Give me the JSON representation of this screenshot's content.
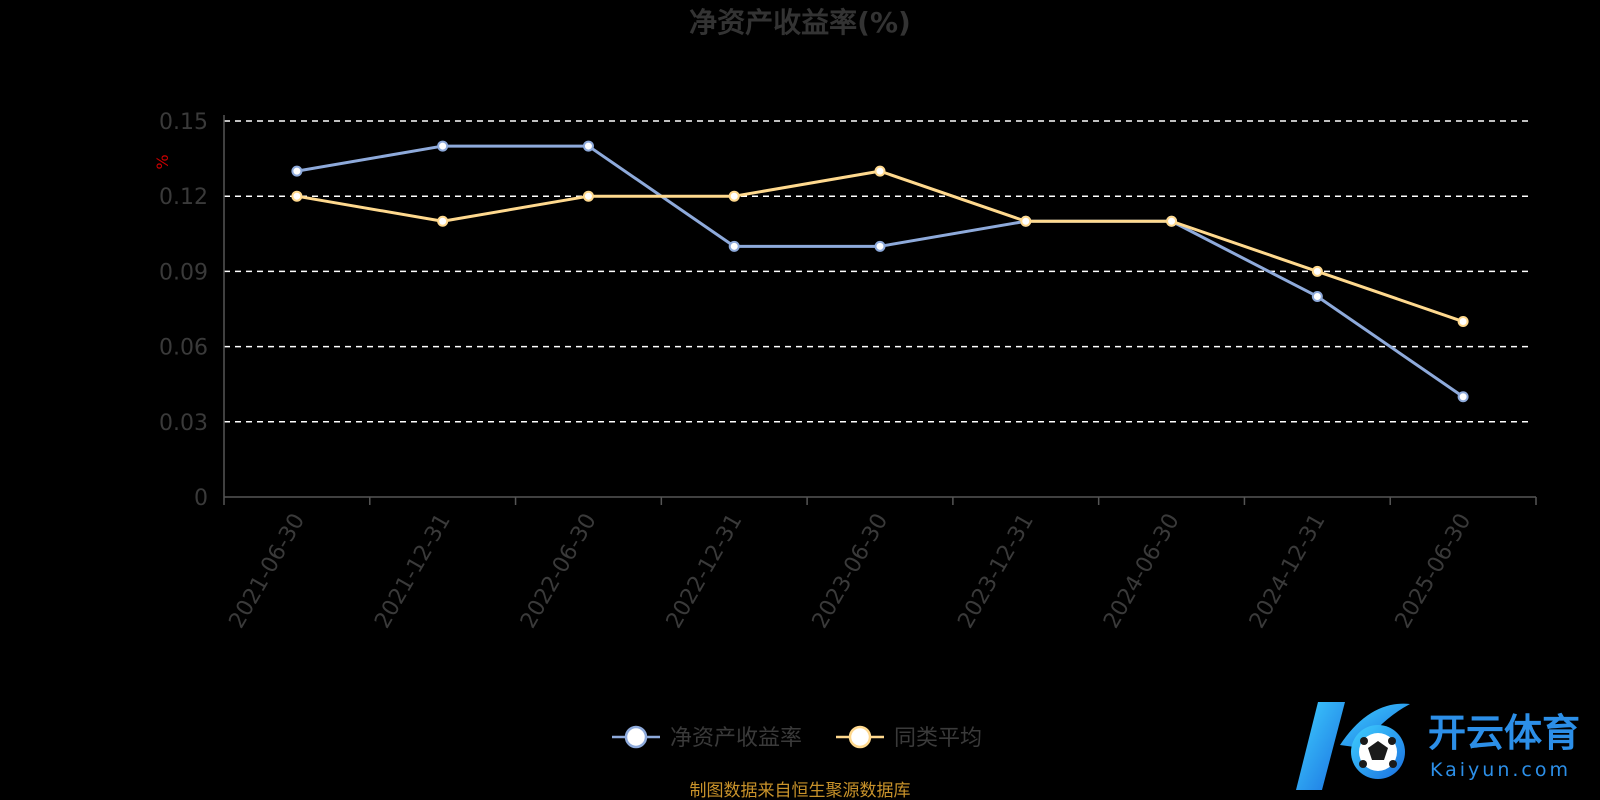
{
  "chart_data": {
    "type": "line",
    "title": "净资产收益率(%)",
    "ylabel": "%",
    "xlabel": "",
    "ylim": [
      0,
      0.15
    ],
    "yticks": [
      "0",
      "0.03",
      "0.06",
      "0.09",
      "0.12",
      "0.15"
    ],
    "grid": true,
    "legend_position": "bottom-center",
    "categories": [
      "2021-06-30",
      "2021-12-31",
      "2022-06-30",
      "2022-12-31",
      "2023-06-30",
      "2023-12-31",
      "2024-06-30",
      "2024-12-31",
      "2025-06-30"
    ],
    "series": [
      {
        "name": "净资产收益率",
        "color": "#8eaadb",
        "values": [
          0.13,
          0.14,
          0.14,
          0.1,
          0.1,
          0.11,
          0.11,
          0.08,
          0.04
        ]
      },
      {
        "name": "同类平均",
        "color": "#ffd98e",
        "values": [
          0.12,
          0.11,
          0.12,
          0.12,
          0.13,
          0.11,
          0.11,
          0.09,
          0.07
        ]
      }
    ]
  },
  "source_note": "制图数据来自恒生聚源数据库",
  "watermark": {
    "brand_cn": "开云体育",
    "brand_en": "Kaiyun.com",
    "icon": "soccer-ball-icon"
  }
}
